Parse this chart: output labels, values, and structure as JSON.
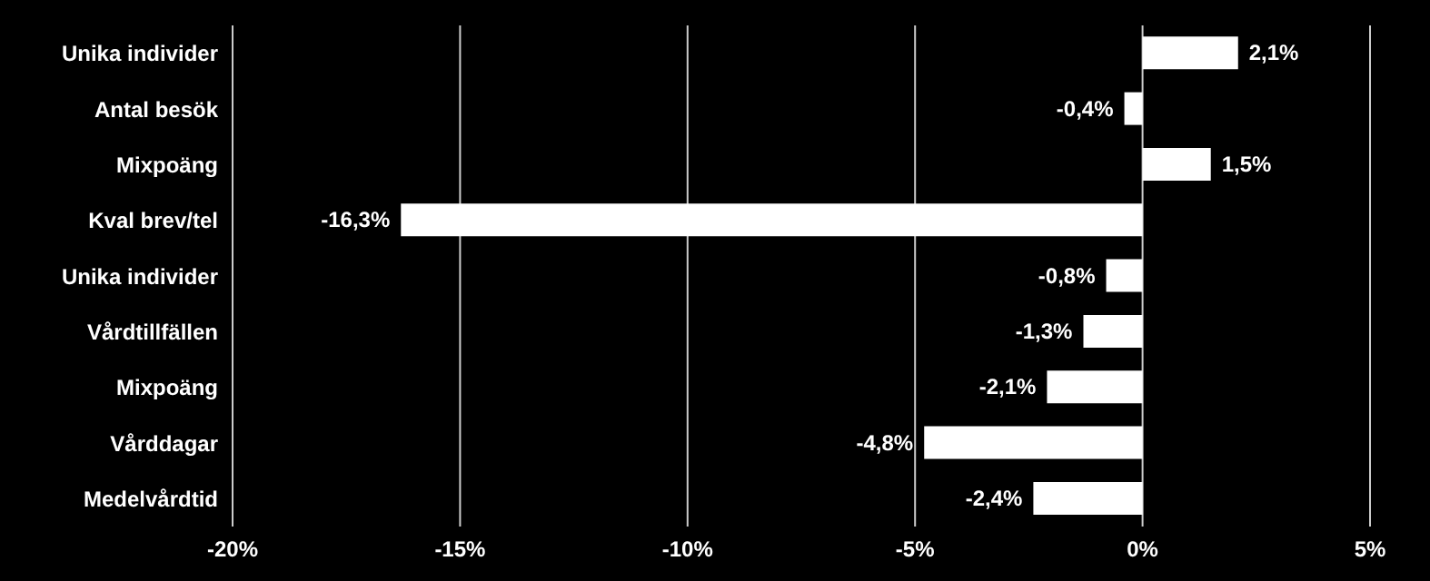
{
  "chart_data": {
    "type": "bar",
    "orientation": "horizontal",
    "categories": [
      "Unika individer",
      "Antal besök",
      "Mixpoäng",
      "Kval brev/tel",
      "Unika individer",
      "Vårdtillfällen",
      "Mixpoäng",
      "Vårddagar",
      "Medelvårdtid"
    ],
    "values": [
      2.1,
      -0.4,
      1.5,
      -16.3,
      -0.8,
      -1.3,
      -2.1,
      -4.8,
      -2.4
    ],
    "value_labels": [
      "2,1%",
      "-0,4%",
      "1,5%",
      "-16,3%",
      "-0,8%",
      "-1,3%",
      "-2,1%",
      "-4,8%",
      "-2,4%"
    ],
    "color": "#ffffff",
    "xlim": [
      -20,
      5
    ],
    "xticks": [
      {
        "value": -20,
        "label": "-20%"
      },
      {
        "value": -15,
        "label": "-15%"
      },
      {
        "value": -10,
        "label": "-10%"
      },
      {
        "value": -5,
        "label": "-5%"
      },
      {
        "value": 0,
        "label": "0%"
      },
      {
        "value": 5,
        "label": "5%"
      }
    ],
    "grid": "x"
  }
}
